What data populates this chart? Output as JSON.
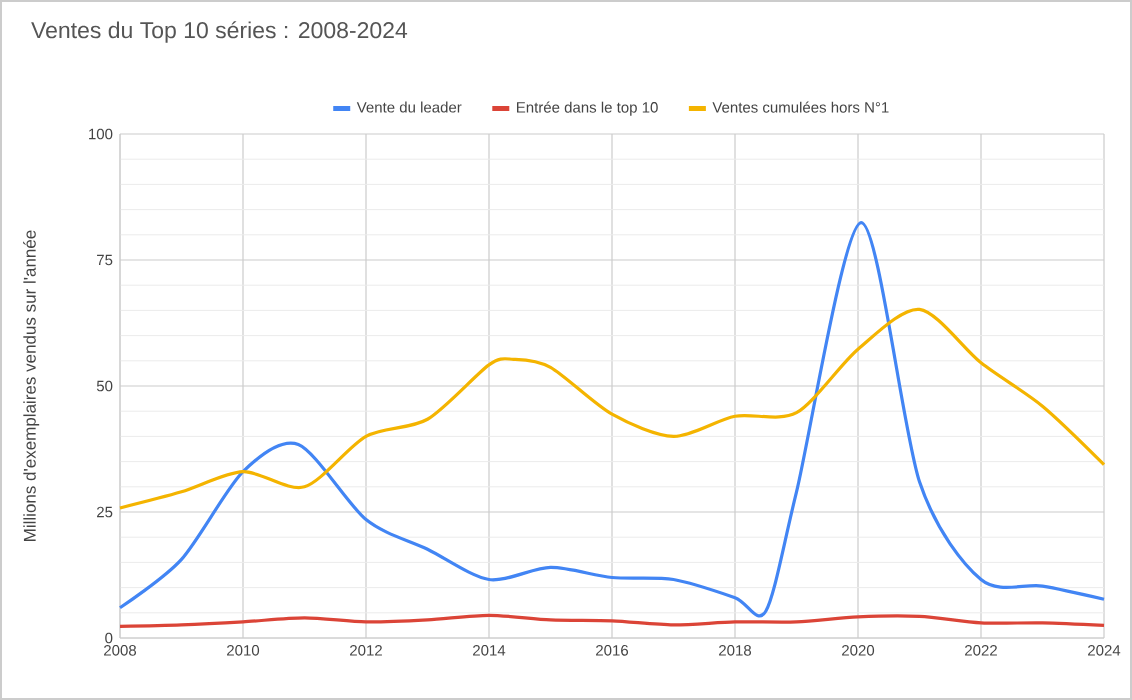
{
  "chart_data": {
    "type": "line",
    "title": "Ventes du Top 10 séries : 2008-2024",
    "ylabel": "Millions d'exemplaires vendus sur l'année",
    "series": [
      {
        "name": "Vente du leader",
        "color": "#4285f4",
        "x": [
          2008,
          2009,
          2010,
          2010.9,
          2012,
          2013,
          2014,
          2015,
          2016,
          2017,
          2018,
          2018.5,
          2019,
          2020.05,
          2021,
          2022,
          2023,
          2024
        ],
        "values": [
          6,
          15.6,
          33,
          38.4,
          23.5,
          17.6,
          11.6,
          14,
          12,
          11.6,
          8,
          5.3,
          29,
          82.4,
          31,
          11.6,
          10.3,
          7.7
        ]
      },
      {
        "name": "Entrée dans le top 10",
        "color": "#db4437",
        "x": [
          2008,
          2009,
          2010,
          2011,
          2012,
          2013,
          2014,
          2015,
          2016,
          2017,
          2018,
          2019,
          2020,
          2021,
          2022,
          2023,
          2024
        ],
        "values": [
          2.3,
          2.6,
          3.2,
          4,
          3.2,
          3.6,
          4.5,
          3.6,
          3.4,
          2.6,
          3.2,
          3.2,
          4.2,
          4.3,
          3,
          3,
          2.5
        ]
      },
      {
        "name": "Ventes cumulées hors N°1",
        "color": "#f4b400",
        "x": [
          2008,
          2009,
          2010,
          2011,
          2012,
          2013,
          2014,
          2014.4,
          2015,
          2016,
          2017,
          2018,
          2019,
          2020,
          2021,
          2022,
          2023,
          2024
        ],
        "values": [
          25.8,
          29,
          33,
          30,
          40,
          43.4,
          54.2,
          55.3,
          53.7,
          44.4,
          40,
          44,
          44.7,
          57.3,
          65.2,
          54.6,
          46,
          34.4
        ]
      }
    ],
    "xlim": [
      2008,
      2024
    ],
    "xticks": [
      2008,
      2010,
      2012,
      2014,
      2016,
      2018,
      2020,
      2022,
      2024
    ],
    "ylim": [
      0,
      100
    ],
    "yticks": [
      0,
      25,
      50,
      75,
      100
    ],
    "grid": true,
    "legend": "top",
    "marker": "none",
    "line_style": "solid"
  }
}
